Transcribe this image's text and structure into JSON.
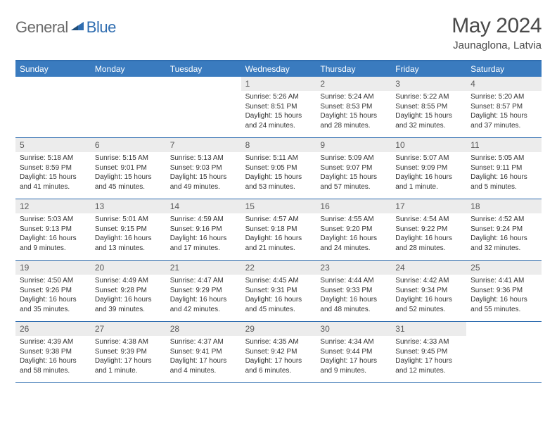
{
  "logo": {
    "general": "General",
    "blue": "Blue"
  },
  "title": "May 2024",
  "location": "Jaunaglona, Latvia",
  "day_headers": [
    "Sunday",
    "Monday",
    "Tuesday",
    "Wednesday",
    "Thursday",
    "Friday",
    "Saturday"
  ],
  "colors": {
    "header_bg": "#3a7bbf",
    "border": "#2f6db0",
    "daynum_bg": "#ececec",
    "text": "#333333"
  },
  "weeks": [
    [
      {
        "empty": true
      },
      {
        "empty": true
      },
      {
        "empty": true
      },
      {
        "num": "1",
        "sunrise": "Sunrise: 5:26 AM",
        "sunset": "Sunset: 8:51 PM",
        "daylight": "Daylight: 15 hours and 24 minutes."
      },
      {
        "num": "2",
        "sunrise": "Sunrise: 5:24 AM",
        "sunset": "Sunset: 8:53 PM",
        "daylight": "Daylight: 15 hours and 28 minutes."
      },
      {
        "num": "3",
        "sunrise": "Sunrise: 5:22 AM",
        "sunset": "Sunset: 8:55 PM",
        "daylight": "Daylight: 15 hours and 32 minutes."
      },
      {
        "num": "4",
        "sunrise": "Sunrise: 5:20 AM",
        "sunset": "Sunset: 8:57 PM",
        "daylight": "Daylight: 15 hours and 37 minutes."
      }
    ],
    [
      {
        "num": "5",
        "sunrise": "Sunrise: 5:18 AM",
        "sunset": "Sunset: 8:59 PM",
        "daylight": "Daylight: 15 hours and 41 minutes."
      },
      {
        "num": "6",
        "sunrise": "Sunrise: 5:15 AM",
        "sunset": "Sunset: 9:01 PM",
        "daylight": "Daylight: 15 hours and 45 minutes."
      },
      {
        "num": "7",
        "sunrise": "Sunrise: 5:13 AM",
        "sunset": "Sunset: 9:03 PM",
        "daylight": "Daylight: 15 hours and 49 minutes."
      },
      {
        "num": "8",
        "sunrise": "Sunrise: 5:11 AM",
        "sunset": "Sunset: 9:05 PM",
        "daylight": "Daylight: 15 hours and 53 minutes."
      },
      {
        "num": "9",
        "sunrise": "Sunrise: 5:09 AM",
        "sunset": "Sunset: 9:07 PM",
        "daylight": "Daylight: 15 hours and 57 minutes."
      },
      {
        "num": "10",
        "sunrise": "Sunrise: 5:07 AM",
        "sunset": "Sunset: 9:09 PM",
        "daylight": "Daylight: 16 hours and 1 minute."
      },
      {
        "num": "11",
        "sunrise": "Sunrise: 5:05 AM",
        "sunset": "Sunset: 9:11 PM",
        "daylight": "Daylight: 16 hours and 5 minutes."
      }
    ],
    [
      {
        "num": "12",
        "sunrise": "Sunrise: 5:03 AM",
        "sunset": "Sunset: 9:13 PM",
        "daylight": "Daylight: 16 hours and 9 minutes."
      },
      {
        "num": "13",
        "sunrise": "Sunrise: 5:01 AM",
        "sunset": "Sunset: 9:15 PM",
        "daylight": "Daylight: 16 hours and 13 minutes."
      },
      {
        "num": "14",
        "sunrise": "Sunrise: 4:59 AM",
        "sunset": "Sunset: 9:16 PM",
        "daylight": "Daylight: 16 hours and 17 minutes."
      },
      {
        "num": "15",
        "sunrise": "Sunrise: 4:57 AM",
        "sunset": "Sunset: 9:18 PM",
        "daylight": "Daylight: 16 hours and 21 minutes."
      },
      {
        "num": "16",
        "sunrise": "Sunrise: 4:55 AM",
        "sunset": "Sunset: 9:20 PM",
        "daylight": "Daylight: 16 hours and 24 minutes."
      },
      {
        "num": "17",
        "sunrise": "Sunrise: 4:54 AM",
        "sunset": "Sunset: 9:22 PM",
        "daylight": "Daylight: 16 hours and 28 minutes."
      },
      {
        "num": "18",
        "sunrise": "Sunrise: 4:52 AM",
        "sunset": "Sunset: 9:24 PM",
        "daylight": "Daylight: 16 hours and 32 minutes."
      }
    ],
    [
      {
        "num": "19",
        "sunrise": "Sunrise: 4:50 AM",
        "sunset": "Sunset: 9:26 PM",
        "daylight": "Daylight: 16 hours and 35 minutes."
      },
      {
        "num": "20",
        "sunrise": "Sunrise: 4:49 AM",
        "sunset": "Sunset: 9:28 PM",
        "daylight": "Daylight: 16 hours and 39 minutes."
      },
      {
        "num": "21",
        "sunrise": "Sunrise: 4:47 AM",
        "sunset": "Sunset: 9:29 PM",
        "daylight": "Daylight: 16 hours and 42 minutes."
      },
      {
        "num": "22",
        "sunrise": "Sunrise: 4:45 AM",
        "sunset": "Sunset: 9:31 PM",
        "daylight": "Daylight: 16 hours and 45 minutes."
      },
      {
        "num": "23",
        "sunrise": "Sunrise: 4:44 AM",
        "sunset": "Sunset: 9:33 PM",
        "daylight": "Daylight: 16 hours and 48 minutes."
      },
      {
        "num": "24",
        "sunrise": "Sunrise: 4:42 AM",
        "sunset": "Sunset: 9:34 PM",
        "daylight": "Daylight: 16 hours and 52 minutes."
      },
      {
        "num": "25",
        "sunrise": "Sunrise: 4:41 AM",
        "sunset": "Sunset: 9:36 PM",
        "daylight": "Daylight: 16 hours and 55 minutes."
      }
    ],
    [
      {
        "num": "26",
        "sunrise": "Sunrise: 4:39 AM",
        "sunset": "Sunset: 9:38 PM",
        "daylight": "Daylight: 16 hours and 58 minutes."
      },
      {
        "num": "27",
        "sunrise": "Sunrise: 4:38 AM",
        "sunset": "Sunset: 9:39 PM",
        "daylight": "Daylight: 17 hours and 1 minute."
      },
      {
        "num": "28",
        "sunrise": "Sunrise: 4:37 AM",
        "sunset": "Sunset: 9:41 PM",
        "daylight": "Daylight: 17 hours and 4 minutes."
      },
      {
        "num": "29",
        "sunrise": "Sunrise: 4:35 AM",
        "sunset": "Sunset: 9:42 PM",
        "daylight": "Daylight: 17 hours and 6 minutes."
      },
      {
        "num": "30",
        "sunrise": "Sunrise: 4:34 AM",
        "sunset": "Sunset: 9:44 PM",
        "daylight": "Daylight: 17 hours and 9 minutes."
      },
      {
        "num": "31",
        "sunrise": "Sunrise: 4:33 AM",
        "sunset": "Sunset: 9:45 PM",
        "daylight": "Daylight: 17 hours and 12 minutes."
      },
      {
        "empty": true
      }
    ]
  ]
}
